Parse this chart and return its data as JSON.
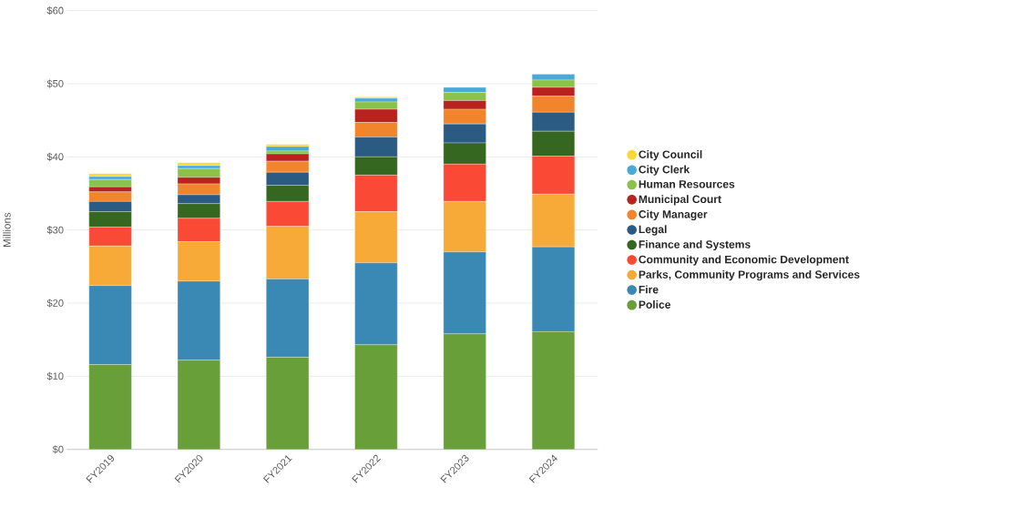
{
  "chart_data": {
    "type": "bar",
    "stacked": true,
    "ylabel": "Millions",
    "categories": [
      "FY2019",
      "FY2020",
      "FY2021",
      "FY2022",
      "FY2023",
      "FY2024"
    ],
    "series": [
      {
        "name": "Police",
        "color": "#689f38",
        "values": [
          11.6,
          12.2,
          12.6,
          14.3,
          15.8,
          16.1
        ]
      },
      {
        "name": "Fire",
        "color": "#3a89b5",
        "values": [
          10.8,
          10.8,
          10.7,
          11.2,
          11.2,
          11.6
        ]
      },
      {
        "name": "Parks, Community Programs and Services",
        "color": "#f7aa38",
        "values": [
          5.4,
          5.4,
          7.2,
          7.0,
          6.9,
          7.2
        ]
      },
      {
        "name": "Community and Economic Development",
        "color": "#fa4a36",
        "values": [
          2.6,
          3.2,
          3.4,
          5.0,
          5.1,
          5.2
        ]
      },
      {
        "name": "Finance and Systems",
        "color": "#356721",
        "values": [
          2.1,
          2.0,
          2.2,
          2.5,
          2.9,
          3.4
        ]
      },
      {
        "name": "Legal",
        "color": "#2b5a82",
        "values": [
          1.4,
          1.2,
          1.8,
          2.7,
          2.6,
          2.6
        ]
      },
      {
        "name": "City Manager",
        "color": "#f2852b",
        "values": [
          1.3,
          1.5,
          1.5,
          2.0,
          2.0,
          2.2
        ]
      },
      {
        "name": "Municipal Court",
        "color": "#b9231f",
        "values": [
          0.7,
          0.9,
          1.0,
          1.8,
          1.2,
          1.2
        ]
      },
      {
        "name": "Human Resources",
        "color": "#8bc34a",
        "values": [
          1.0,
          1.2,
          0.4,
          1.0,
          1.1,
          1.0
        ]
      },
      {
        "name": "City Clerk",
        "color": "#4aa9d9",
        "values": [
          0.4,
          0.4,
          0.6,
          0.5,
          0.7,
          0.8
        ]
      },
      {
        "name": "City Council",
        "color": "#fdd835",
        "values": [
          0.4,
          0.4,
          0.3,
          0.2,
          0,
          0
        ]
      }
    ],
    "ylim": [
      0,
      60
    ],
    "yticks": [
      {
        "value": 0,
        "label": "$0"
      },
      {
        "value": 10,
        "label": "$10"
      },
      {
        "value": 20,
        "label": "$20"
      },
      {
        "value": 30,
        "label": "$30"
      },
      {
        "value": 40,
        "label": "$40"
      },
      {
        "value": 50,
        "label": "$50"
      },
      {
        "value": 60,
        "label": "$60"
      }
    ],
    "grid": "y",
    "legend": "right",
    "marker": "circle"
  }
}
